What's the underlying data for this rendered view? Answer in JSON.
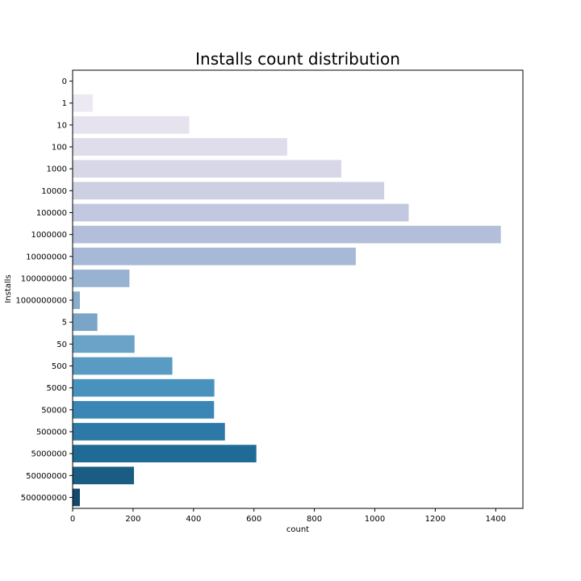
{
  "chart_data": {
    "type": "bar",
    "orientation": "horizontal",
    "title": "Installs count distribution",
    "xlabel": "count",
    "ylabel": "Installs",
    "categories": [
      "0",
      "1",
      "10",
      "100",
      "1000",
      "10000",
      "100000",
      "1000000",
      "10000000",
      "100000000",
      "1000000000",
      "5",
      "50",
      "500",
      "5000",
      "50000",
      "500000",
      "5000000",
      "50000000",
      "500000000"
    ],
    "values": [
      1,
      67,
      386,
      710,
      889,
      1031,
      1112,
      1417,
      937,
      188,
      24,
      82,
      205,
      330,
      469,
      468,
      504,
      608,
      203,
      24
    ],
    "xlim": [
      0,
      1490
    ],
    "xticks": [
      0,
      200,
      400,
      600,
      800,
      1000,
      1200,
      1400
    ],
    "grid": false,
    "palette": "PuBu gradient (light to dark)",
    "colors": [
      "#f5f3f9",
      "#ede9f3",
      "#e6e3ef",
      "#dfddeb",
      "#d7d7e8",
      "#cdcfe3",
      "#c1c8df",
      "#b3bfda",
      "#a6b9d6",
      "#98b3d1",
      "#89abcc",
      "#7ba4c9",
      "#6ba3c8",
      "#5a9bc4",
      "#4a92be",
      "#3a86b4",
      "#2c79a8",
      "#1f6b96",
      "#1a5c82",
      "#15486b"
    ]
  }
}
